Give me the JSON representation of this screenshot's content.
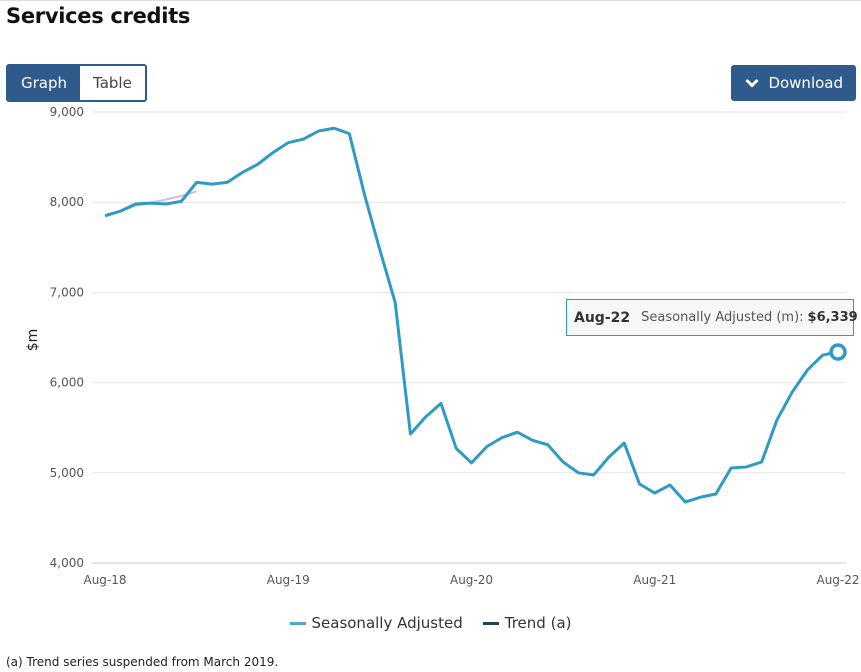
{
  "title": "Services credits",
  "view_toggle": {
    "graph": "Graph",
    "table": "Table",
    "active": "Graph"
  },
  "download_label": "Download",
  "footnote": "(a) Trend series suspended from March 2019.",
  "tooltip": {
    "period": "Aug-22",
    "series": "Seasonally Adjusted (m):",
    "value": "$6,339"
  },
  "colors": {
    "accent": "#2e5a8c",
    "seasonal": "#2f9bc4",
    "trend": "#1f4656",
    "trend_line": "#c8c3e6"
  },
  "chart_data": {
    "type": "line",
    "title": "Services credits",
    "xlabel": "",
    "ylabel": "$m",
    "ylim": [
      4000,
      9000
    ],
    "yticks": [
      "4,000",
      "5,000",
      "6,000",
      "7,000",
      "8,000",
      "9,000"
    ],
    "ytick_values": [
      4000,
      5000,
      6000,
      7000,
      8000,
      9000
    ],
    "xticks": [
      "Aug-18",
      "Aug-19",
      "Aug-20",
      "Aug-21",
      "Aug-22"
    ],
    "xtick_index": [
      0,
      12,
      24,
      36,
      48
    ],
    "grid": true,
    "legend_position": "bottom",
    "series": [
      {
        "name": "Seasonally Adjusted",
        "start": "Aug-18",
        "values": [
          7850,
          7900,
          7980,
          7990,
          7980,
          8010,
          8220,
          8200,
          8220,
          8330,
          8420,
          8550,
          8660,
          8700,
          8790,
          8820,
          8760,
          8080,
          7470,
          6890,
          5430,
          5620,
          5770,
          5270,
          5110,
          5290,
          5390,
          5450,
          5360,
          5310,
          5120,
          5000,
          4976,
          5175,
          5330,
          4876,
          4776,
          4865,
          4676,
          4730,
          4765,
          5053,
          5065,
          5120,
          5585,
          5895,
          6140,
          6305,
          6339
        ]
      },
      {
        "name": "Trend (a)",
        "start": "Aug-18",
        "values": [
          7840,
          7900,
          7960,
          7995,
          8030,
          8070,
          8120
        ]
      }
    ]
  }
}
